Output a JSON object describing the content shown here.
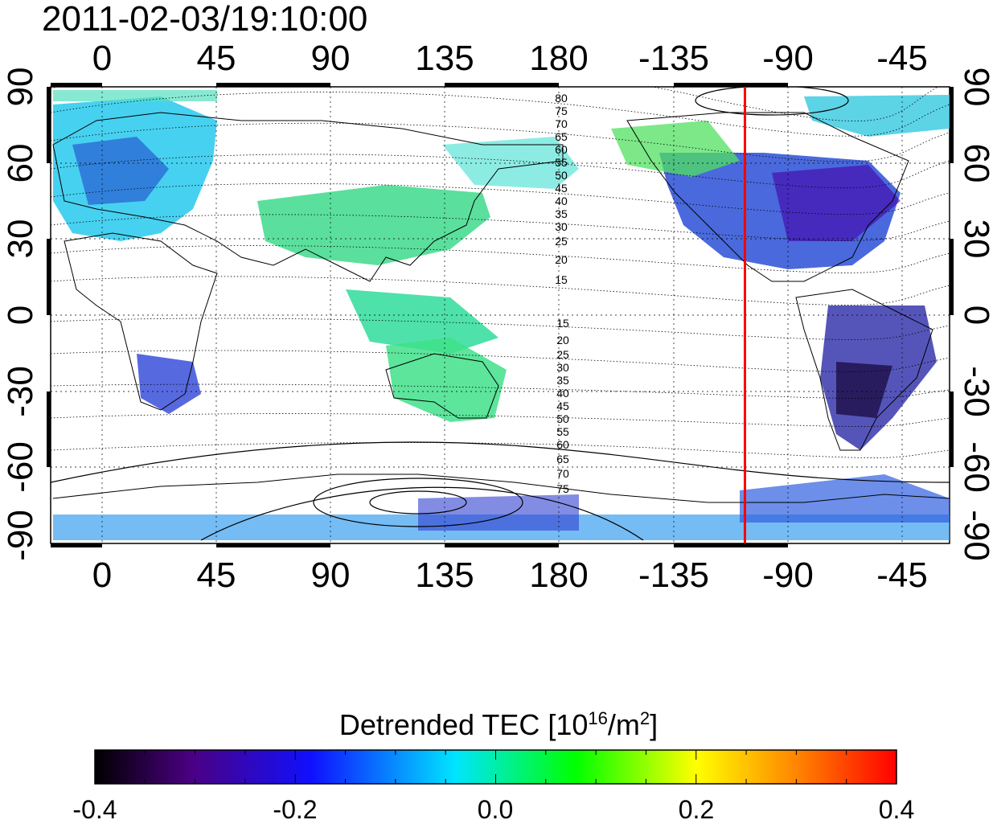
{
  "timestamp": "2011-02-03/19:10:00",
  "lon_ticks": [
    "0",
    "45",
    "90",
    "135",
    "180",
    "-135",
    "-90",
    "-45"
  ],
  "lat_ticks": [
    "90",
    "60",
    "30",
    "0",
    "-30",
    "-60",
    "-90"
  ],
  "mlat_north_labels": [
    "80",
    "75",
    "70",
    "65",
    "60",
    "55",
    "50",
    "45",
    "40",
    "35",
    "30",
    "25",
    "20",
    "15"
  ],
  "mlat_south_labels": [
    "15",
    "20",
    "25",
    "30",
    "35",
    "40",
    "45",
    "50",
    "55",
    "60",
    "65",
    "70",
    "75"
  ],
  "terminator_longitude": -107,
  "colorbar": {
    "title_main": "Detrended TEC  [10",
    "title_sup1": "16",
    "title_mid": "/m",
    "title_sup2": "2",
    "title_end": "]",
    "min": -0.4,
    "max": 0.4,
    "tick_labels": [
      "-0.4",
      "-0.2",
      "0.0",
      "0.2",
      "0.4"
    ],
    "colors": [
      "#000000",
      "#4b0082",
      "#0000ff",
      "#00ffff",
      "#00ff00",
      "#ffff00",
      "#ff0000"
    ]
  },
  "colors": {
    "terminator": "#ff0000",
    "grid": "#000000",
    "frame": "#000000"
  }
}
